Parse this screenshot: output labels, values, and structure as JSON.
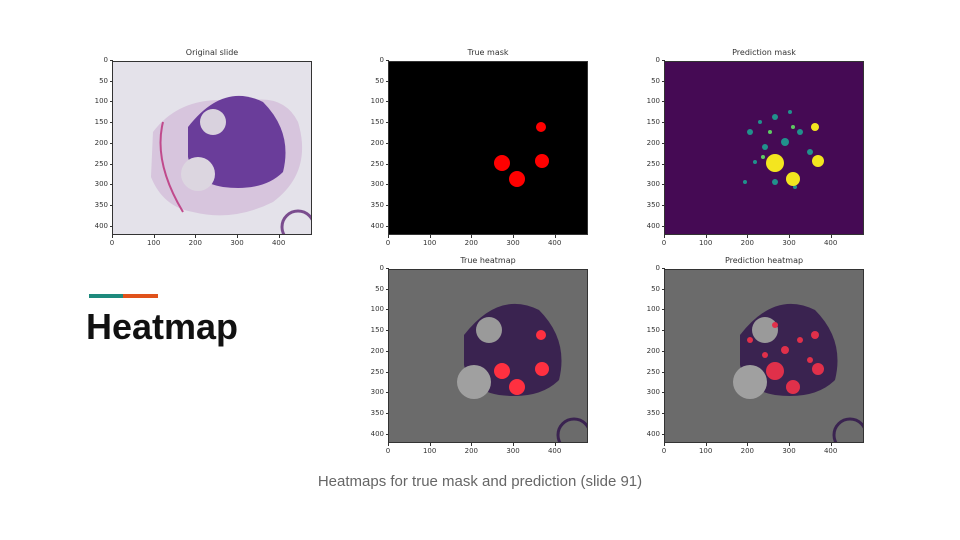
{
  "heading": "Heatmap",
  "caption": "Heatmaps for true mask and prediction (slide 91)",
  "colors": {
    "accent_teal": "#1e8a7d",
    "accent_orange": "#e0521b",
    "mask_red": "#ff0000",
    "pred_yellow": "#f3e51f",
    "pred_bg": "#450a54",
    "heat_bg": "#6b6b6b"
  },
  "panels": [
    {
      "title": "Original slide",
      "y_ticks": [
        "0",
        "50",
        "100",
        "150",
        "200",
        "250",
        "300",
        "350",
        "400"
      ],
      "x_ticks": [
        "0",
        "100",
        "200",
        "300",
        "400"
      ]
    },
    {
      "title": "True mask",
      "y_ticks": [
        "0",
        "50",
        "100",
        "150",
        "200",
        "250",
        "300",
        "350",
        "400"
      ],
      "x_ticks": [
        "0",
        "100",
        "200",
        "300",
        "400"
      ]
    },
    {
      "title": "Prediction mask",
      "y_ticks": [
        "0",
        "50",
        "100",
        "150",
        "200",
        "250",
        "300",
        "350",
        "400"
      ],
      "x_ticks": [
        "0",
        "100",
        "200",
        "300",
        "400"
      ]
    },
    {
      "title": "True heatmap",
      "y_ticks": [
        "0",
        "50",
        "100",
        "150",
        "200",
        "250",
        "300",
        "350",
        "400"
      ],
      "x_ticks": [
        "0",
        "100",
        "200",
        "300",
        "400"
      ]
    },
    {
      "title": "Prediction heatmap",
      "y_ticks": [
        "0",
        "50",
        "100",
        "150",
        "200",
        "250",
        "300",
        "350",
        "400"
      ],
      "x_ticks": [
        "0",
        "100",
        "200",
        "300",
        "400"
      ]
    }
  ]
}
